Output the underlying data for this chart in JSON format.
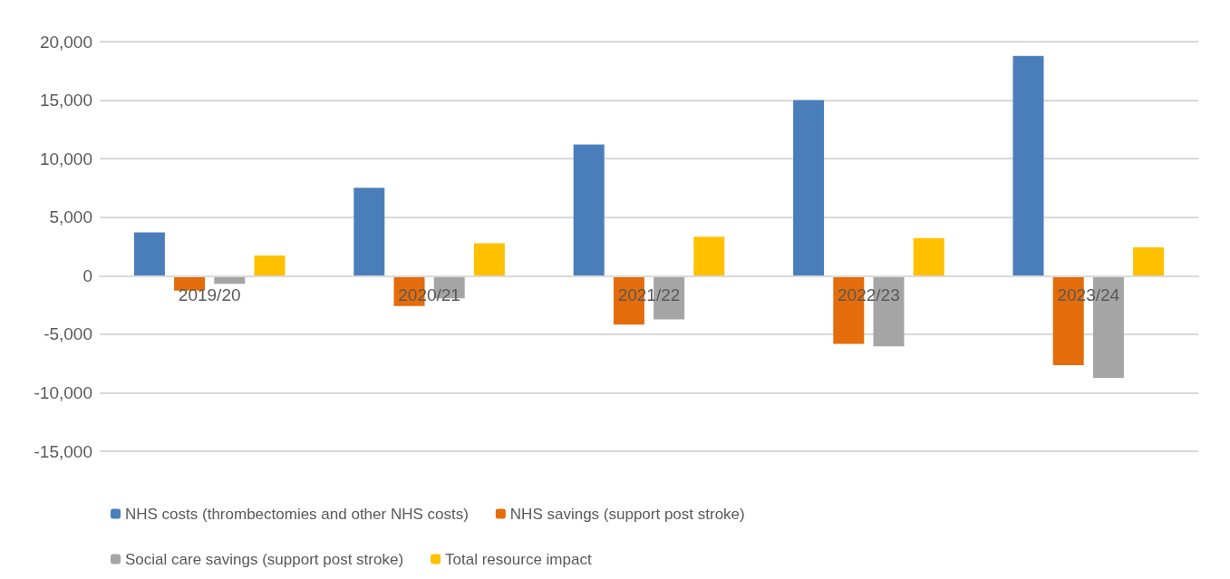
{
  "chart_data": {
    "type": "bar",
    "categories": [
      "2019/20",
      "2020/21",
      "2021/22",
      "2022/23",
      "2023/24"
    ],
    "series": [
      {
        "name": "NHS costs (thrombectomies and other NHS costs)",
        "color": "#4a7ebb",
        "values": [
          3700,
          7520,
          11220,
          15000,
          18780
        ]
      },
      {
        "name": "NHS savings (support post stroke)",
        "color": "#e46c0a",
        "values": [
          -1280,
          -2600,
          -4180,
          -5820,
          -7640
        ]
      },
      {
        "name": "Social care savings (support post stroke)",
        "color": "#a5a5a5",
        "values": [
          -690,
          -1940,
          -3730,
          -6030,
          -8720
        ]
      },
      {
        "name": "Total resource impact",
        "color": "#ffc000",
        "values": [
          1730,
          2780,
          3340,
          3220,
          2420
        ]
      }
    ],
    "ylim": [
      -15000,
      20000
    ],
    "yticks": [
      {
        "value": -15000,
        "label": "-15,000"
      },
      {
        "value": -10000,
        "label": "-10,000"
      },
      {
        "value": -5000,
        "label": "-5,000"
      },
      0,
      {
        "value": 5000,
        "label": "5,000"
      },
      {
        "value": 10000,
        "label": "10,000"
      },
      {
        "value": 15000,
        "label": "15,000"
      },
      {
        "value": 20000,
        "label": "20,000"
      }
    ],
    "grid": "y",
    "legend": "bottom"
  }
}
